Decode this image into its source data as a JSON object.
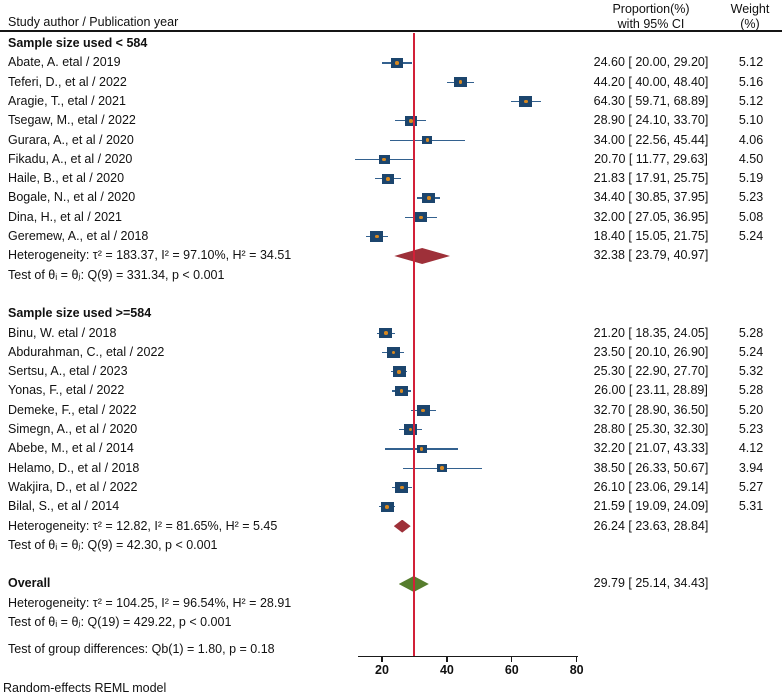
{
  "header": {
    "study_col": "Study author / Publication year",
    "effect_col_line1": "Proportion(%)",
    "effect_col_line2": "with 95% CI",
    "weight_col_line1": "Weight",
    "weight_col_line2": "(%)"
  },
  "footer_note": "Random-effects REML model",
  "colors": {
    "marker_square": "#1c456d",
    "marker_dot": "#d9891f",
    "ci_whisker": "#33618f",
    "subgroup_diamond": "#9e3039",
    "overall_diamond": "#567d2d",
    "reference_line": "#d22038",
    "header_rule": "#151515",
    "axis": "#1a1a1a"
  },
  "chart_data": {
    "type": "forest",
    "title": "",
    "xlabel": "",
    "x_axis": {
      "ticks": [
        20,
        40,
        60,
        80
      ],
      "range": [
        12,
        81
      ]
    },
    "reference_line": 29.79,
    "legend": null,
    "rows": [
      {
        "type": "group-header",
        "label": "Sample size used < 584"
      },
      {
        "type": "study",
        "label": "Abate, A. etal / 2019",
        "est": 24.6,
        "lo": 20.0,
        "hi": 29.2,
        "ci": "24.60 [ 20.00, 29.20]",
        "weight": "5.12"
      },
      {
        "type": "study",
        "label": "Teferi, D., et al / 2022",
        "est": 44.2,
        "lo": 40.0,
        "hi": 48.4,
        "ci": "44.20 [ 40.00, 48.40]",
        "weight": "5.16"
      },
      {
        "type": "study",
        "label": "Aragie, T., etal / 2021",
        "est": 64.3,
        "lo": 59.71,
        "hi": 68.89,
        "ci": "64.30 [ 59.71, 68.89]",
        "weight": "5.12"
      },
      {
        "type": "study",
        "label": "Tsegaw, M., etal / 2022",
        "est": 28.9,
        "lo": 24.1,
        "hi": 33.7,
        "ci": "28.90 [ 24.10, 33.70]",
        "weight": "5.10"
      },
      {
        "type": "study",
        "label": "Gurara, A., et al / 2020",
        "est": 34.0,
        "lo": 22.56,
        "hi": 45.44,
        "ci": "34.00 [ 22.56, 45.44]",
        "weight": "4.06"
      },
      {
        "type": "study",
        "label": "Fikadu, A., et al / 2020",
        "est": 20.7,
        "lo": 11.77,
        "hi": 29.63,
        "ci": "20.70 [ 11.77, 29.63]",
        "weight": "4.50"
      },
      {
        "type": "study",
        "label": "Haile, B., et al / 2020",
        "est": 21.83,
        "lo": 17.91,
        "hi": 25.75,
        "ci": "21.83 [ 17.91, 25.75]",
        "weight": "5.19"
      },
      {
        "type": "study",
        "label": "Bogale, N., et al / 2020",
        "est": 34.4,
        "lo": 30.85,
        "hi": 37.95,
        "ci": "34.40 [ 30.85, 37.95]",
        "weight": "5.23"
      },
      {
        "type": "study",
        "label": "Dina, H., et al / 2021",
        "est": 32.0,
        "lo": 27.05,
        "hi": 36.95,
        "ci": "32.00 [ 27.05, 36.95]",
        "weight": "5.08"
      },
      {
        "type": "study",
        "label": "Geremew, A., et al / 2018",
        "est": 18.4,
        "lo": 15.05,
        "hi": 21.75,
        "ci": "18.40 [ 15.05, 21.75]",
        "weight": "5.24"
      },
      {
        "type": "summary",
        "label": "Heterogeneity: τ² = 183.37, I² = 97.10%, H² = 34.51",
        "est": 32.38,
        "lo": 23.79,
        "hi": 40.97,
        "ci": "32.38 [ 23.79, 40.97]",
        "diamond": "red"
      },
      {
        "type": "stat",
        "label": "Test of θᵢ = θⱼ: Q(9) = 331.34, p < 0.001"
      },
      {
        "type": "spacer",
        "h": 19.3
      },
      {
        "type": "group-header",
        "label": "Sample size used >=584"
      },
      {
        "type": "study",
        "label": "Binu, W. etal / 2018",
        "est": 21.2,
        "lo": 18.35,
        "hi": 24.05,
        "ci": "21.20 [ 18.35, 24.05]",
        "weight": "5.28"
      },
      {
        "type": "study",
        "label": "Abdurahman, C., etal / 2022",
        "est": 23.5,
        "lo": 20.1,
        "hi": 26.9,
        "ci": "23.50 [ 20.10, 26.90]",
        "weight": "5.24"
      },
      {
        "type": "study",
        "label": "Sertsu, A., etal / 2023",
        "est": 25.3,
        "lo": 22.9,
        "hi": 27.7,
        "ci": "25.30 [ 22.90, 27.70]",
        "weight": "5.32"
      },
      {
        "type": "study",
        "label": "Yonas, F., etal / 2022",
        "est": 26.0,
        "lo": 23.11,
        "hi": 28.89,
        "ci": "26.00 [ 23.11, 28.89]",
        "weight": "5.28"
      },
      {
        "type": "study",
        "label": "Demeke, F., etal / 2022",
        "est": 32.7,
        "lo": 28.9,
        "hi": 36.5,
        "ci": "32.70 [ 28.90, 36.50]",
        "weight": "5.20"
      },
      {
        "type": "study",
        "label": "Simegn, A., et al / 2020",
        "est": 28.8,
        "lo": 25.3,
        "hi": 32.3,
        "ci": "28.80 [ 25.30, 32.30]",
        "weight": "5.23"
      },
      {
        "type": "study",
        "label": "Abebe, M., et al / 2014",
        "est": 32.2,
        "lo": 21.07,
        "hi": 43.33,
        "ci": "32.20 [ 21.07, 43.33]",
        "weight": "4.12"
      },
      {
        "type": "study",
        "label": "Helamo, D., et al / 2018",
        "est": 38.5,
        "lo": 26.33,
        "hi": 50.67,
        "ci": "38.50 [ 26.33, 50.67]",
        "weight": "3.94"
      },
      {
        "type": "study",
        "label": "Wakjira, D., et al / 2022",
        "est": 26.1,
        "lo": 23.06,
        "hi": 29.14,
        "ci": "26.10 [ 23.06, 29.14]",
        "weight": "5.27"
      },
      {
        "type": "study",
        "label": "Bilal, S., et al / 2014",
        "est": 21.59,
        "lo": 19.09,
        "hi": 24.09,
        "ci": "21.59 [ 19.09, 24.09]",
        "weight": "5.31"
      },
      {
        "type": "summary",
        "label": "Heterogeneity: τ² = 12.82, I² = 81.65%, H² = 5.45",
        "est": 26.24,
        "lo": 23.63,
        "hi": 28.84,
        "ci": "26.24 [ 23.63, 28.84]",
        "diamond": "red"
      },
      {
        "type": "stat",
        "label": "Test of θᵢ = θⱼ: Q(9) = 42.30, p < 0.001"
      },
      {
        "type": "spacer",
        "h": 19.3
      },
      {
        "type": "summary",
        "label": "Overall",
        "bold": true,
        "est": 29.79,
        "lo": 25.14,
        "hi": 34.43,
        "ci": "29.79 [ 25.14, 34.43]",
        "diamond": "green"
      },
      {
        "type": "stat",
        "label": "Heterogeneity: τ² = 104.25, I² = 96.54%, H² = 28.91"
      },
      {
        "type": "stat",
        "label": "Test of θᵢ = θⱼ: Q(19) = 429.22, p < 0.001"
      },
      {
        "type": "spacer",
        "h": 8
      },
      {
        "type": "stat",
        "label": "Test of group differences: Qb(1) = 1.80, p = 0.18"
      }
    ]
  }
}
